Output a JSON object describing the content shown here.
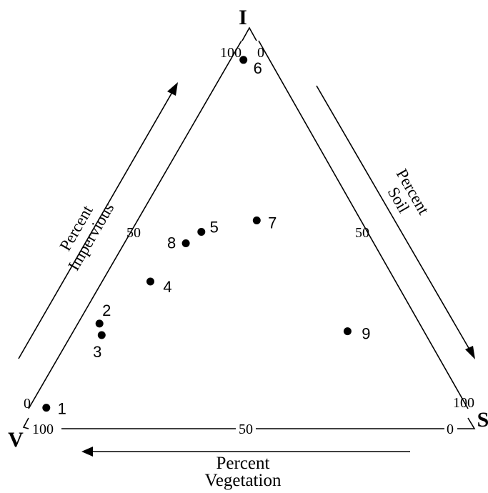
{
  "chart_data": {
    "type": "scatter",
    "subtype": "ternary",
    "vertices": {
      "top": "I",
      "left": "V",
      "right": "S"
    },
    "axis_titles": {
      "impervious": [
        "Percent",
        "Impervious"
      ],
      "soil": [
        "Percent",
        "Soil"
      ],
      "vegetation": [
        "Percent",
        "Vegetation"
      ]
    },
    "tick_labels": {
      "top_left": "100",
      "top_right": "0",
      "left_bottom_side": "0",
      "bottom_left": "100",
      "right_bottom_side": "100",
      "bottom_right": "0",
      "left_mid": "50",
      "right_mid": "50",
      "bottom_mid": "50"
    },
    "points": [
      {
        "label": "1",
        "impervious": 4,
        "vegetation": 94,
        "soil": 2
      },
      {
        "label": "2",
        "impervious": 26,
        "vegetation": 71,
        "soil": 3
      },
      {
        "label": "3",
        "impervious": 23,
        "vegetation": 72,
        "soil": 5
      },
      {
        "label": "4",
        "impervious": 37,
        "vegetation": 54,
        "soil": 9
      },
      {
        "label": "5",
        "impervious": 50,
        "vegetation": 36,
        "soil": 14
      },
      {
        "label": "6",
        "impervious": 95,
        "vegetation": 4,
        "soil": 1
      },
      {
        "label": "7",
        "impervious": 53,
        "vegetation": 22,
        "soil": 25
      },
      {
        "label": "8",
        "impervious": 47,
        "vegetation": 41,
        "soil": 12
      },
      {
        "label": "9",
        "impervious": 24,
        "vegetation": 16,
        "soil": 60
      }
    ],
    "legend": "none",
    "grid": false
  }
}
